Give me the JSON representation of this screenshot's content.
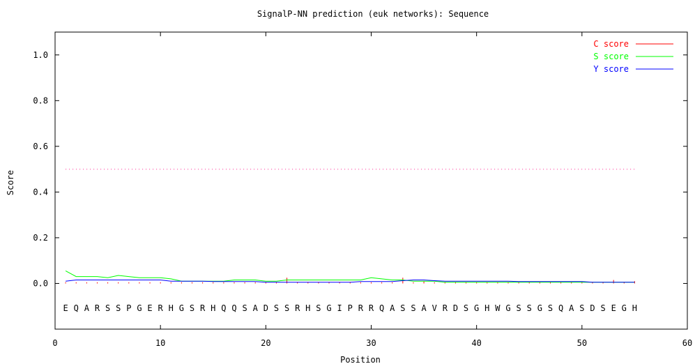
{
  "chart_data": {
    "type": "line",
    "title": "SignalP-NN prediction (euk networks): Sequence",
    "xlabel": "Position",
    "ylabel": "Score",
    "xlim": [
      0,
      60
    ],
    "ylim": [
      -0.2,
      1.1
    ],
    "xticks": [
      0,
      10,
      20,
      30,
      40,
      50,
      60
    ],
    "yticks": [
      0.0,
      0.2,
      0.4,
      0.6,
      0.8,
      1.0
    ],
    "xtick_labels": [
      "0",
      "10",
      "20",
      "30",
      "40",
      "50",
      "60"
    ],
    "ytick_labels": [
      "0.0",
      "0.2",
      "0.4",
      "0.6",
      "0.8",
      "1.0"
    ],
    "threshold": 0.5,
    "threshold_color": "#ff69b4",
    "sequence": [
      "E",
      "Q",
      "A",
      "R",
      "S",
      "S",
      "P",
      "G",
      "E",
      "R",
      "H",
      "G",
      "S",
      "R",
      "H",
      "Q",
      "Q",
      "S",
      "A",
      "D",
      "S",
      "S",
      "R",
      "H",
      "S",
      "G",
      "I",
      "P",
      "R",
      "R",
      "Q",
      "A",
      "S",
      "S",
      "A",
      "V",
      "R",
      "D",
      "S",
      "G",
      "H",
      "W",
      "G",
      "S",
      "S",
      "G",
      "S",
      "Q",
      "A",
      "S",
      "D",
      "S",
      "E",
      "G",
      "H"
    ],
    "legend_position": "top-right",
    "series": [
      {
        "name": "C score",
        "color": "#ff0000",
        "style": "impulse",
        "values": [
          0.005,
          0.005,
          0.005,
          0.005,
          0.005,
          0.005,
          0.005,
          0.005,
          0.005,
          0.005,
          0.005,
          0.005,
          0.005,
          0.005,
          0.005,
          0.005,
          0.005,
          0.005,
          0.005,
          0.005,
          0.005,
          0.025,
          0.005,
          0.005,
          0.005,
          0.005,
          0.005,
          0.005,
          0.005,
          0.005,
          0.005,
          0.005,
          0.025,
          0.005,
          0.01,
          0.005,
          0.005,
          0.005,
          0.005,
          0.005,
          0.005,
          0.005,
          0.005,
          0.005,
          0.005,
          0.005,
          0.005,
          0.005,
          0.005,
          0.005,
          0.005,
          0.005,
          0.015,
          0.005,
          0.01
        ]
      },
      {
        "name": "S score",
        "color": "#00ff00",
        "style": "line",
        "values": [
          0.055,
          0.03,
          0.03,
          0.03,
          0.025,
          0.035,
          0.03,
          0.025,
          0.025,
          0.025,
          0.02,
          0.01,
          0.01,
          0.01,
          0.01,
          0.01,
          0.015,
          0.015,
          0.015,
          0.01,
          0.01,
          0.015,
          0.015,
          0.015,
          0.015,
          0.015,
          0.015,
          0.015,
          0.015,
          0.025,
          0.02,
          0.015,
          0.015,
          0.01,
          0.01,
          0.01,
          0.005,
          0.005,
          0.005,
          0.005,
          0.005,
          0.005,
          0.005,
          0.005,
          0.005,
          0.005,
          0.005,
          0.005,
          0.005,
          0.005,
          0.005,
          0.005,
          0.005,
          0.005,
          0.005
        ]
      },
      {
        "name": "Y score",
        "color": "#0000ff",
        "style": "line",
        "values": [
          0.01,
          0.015,
          0.015,
          0.015,
          0.015,
          0.015,
          0.015,
          0.015,
          0.015,
          0.015,
          0.01,
          0.01,
          0.01,
          0.01,
          0.008,
          0.008,
          0.008,
          0.008,
          0.008,
          0.005,
          0.005,
          0.005,
          0.005,
          0.005,
          0.005,
          0.005,
          0.005,
          0.005,
          0.008,
          0.008,
          0.008,
          0.008,
          0.012,
          0.015,
          0.015,
          0.012,
          0.01,
          0.01,
          0.01,
          0.01,
          0.01,
          0.01,
          0.01,
          0.008,
          0.008,
          0.008,
          0.008,
          0.008,
          0.008,
          0.008,
          0.005,
          0.005,
          0.005,
          0.005,
          0.005
        ]
      }
    ]
  }
}
